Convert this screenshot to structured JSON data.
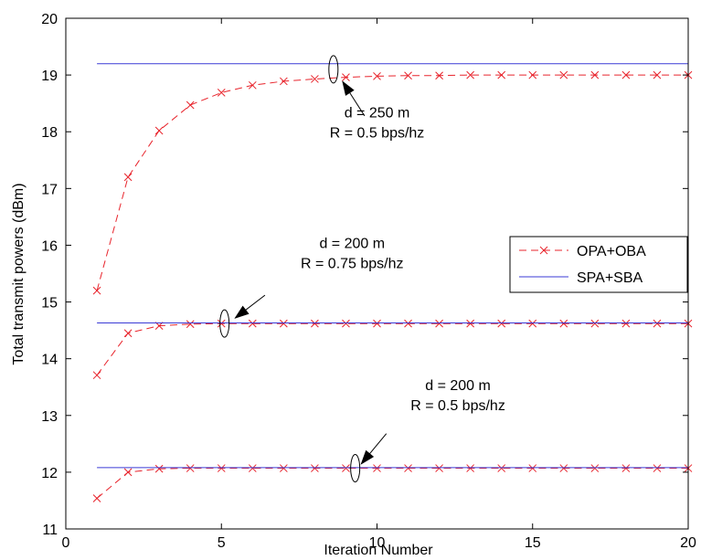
{
  "chart_data": {
    "type": "line",
    "xlabel": "Iteration Number",
    "ylabel": "Total transmit powers (dBm)",
    "xlim": [
      0,
      20
    ],
    "ylim": [
      11,
      20
    ],
    "xticks": [
      "0",
      "5",
      "10",
      "15",
      "20"
    ],
    "yticks": [
      "11",
      "12",
      "13",
      "14",
      "15",
      "16",
      "17",
      "18",
      "19",
      "20"
    ],
    "grid": false,
    "legend_position": "right",
    "legend": [
      {
        "label": "OPA+OBA",
        "style": "dashed-x",
        "color": "#e8242c"
      },
      {
        "label": "SPA+SBA",
        "style": "solid",
        "color": "#3a3ad6"
      }
    ],
    "series": [
      {
        "legend_index": 0,
        "x": [
          1,
          2,
          3,
          4,
          5,
          6,
          7,
          8,
          9,
          10,
          11,
          12,
          13,
          14,
          15,
          16,
          17,
          18,
          19,
          20
        ],
        "y": [
          15.2,
          17.2,
          18.02,
          18.47,
          18.69,
          18.82,
          18.89,
          18.93,
          18.96,
          18.98,
          18.99,
          18.99,
          19.0,
          19.0,
          19.0,
          19.0,
          19.0,
          19.0,
          19.0,
          19.0
        ]
      },
      {
        "legend_index": 1,
        "x": [
          1,
          20
        ],
        "y": [
          19.2,
          19.2
        ]
      },
      {
        "legend_index": 0,
        "x": [
          1,
          2,
          3,
          4,
          5,
          6,
          7,
          8,
          9,
          10,
          11,
          12,
          13,
          14,
          15,
          16,
          17,
          18,
          19,
          20
        ],
        "y": [
          13.71,
          14.45,
          14.58,
          14.61,
          14.62,
          14.62,
          14.62,
          14.62,
          14.62,
          14.62,
          14.62,
          14.62,
          14.62,
          14.62,
          14.62,
          14.62,
          14.62,
          14.62,
          14.62,
          14.62
        ]
      },
      {
        "legend_index": 1,
        "x": [
          1,
          20
        ],
        "y": [
          14.63,
          14.63
        ]
      },
      {
        "legend_index": 0,
        "x": [
          1,
          2,
          3,
          4,
          5,
          6,
          7,
          8,
          9,
          10,
          11,
          12,
          13,
          14,
          15,
          16,
          17,
          18,
          19,
          20
        ],
        "y": [
          11.54,
          12.0,
          12.06,
          12.07,
          12.07,
          12.07,
          12.07,
          12.07,
          12.07,
          12.07,
          12.07,
          12.07,
          12.07,
          12.07,
          12.07,
          12.07,
          12.07,
          12.07,
          12.07,
          12.07
        ]
      },
      {
        "legend_index": 1,
        "x": [
          1,
          20
        ],
        "y": [
          12.08,
          12.08
        ]
      }
    ],
    "annotations": [
      {
        "line1": "d = 250 m",
        "line2": "R = 0.5 bps/hz",
        "ellipse_x": 8.6,
        "ellipse_y": 19.1,
        "arrow_to_x": 8.9,
        "arrow_to_y": 18.88,
        "arrow_from_x": 9.6,
        "arrow_from_y": 18.28,
        "text_x": 10.0,
        "text_y": 18.25
      },
      {
        "line1": "d = 200 m",
        "line2": "R = 0.75 bps/hz",
        "ellipse_x": 5.1,
        "ellipse_y": 14.62,
        "arrow_to_x": 5.45,
        "arrow_to_y": 14.72,
        "arrow_from_x": 6.4,
        "arrow_from_y": 15.12,
        "text_x": 9.2,
        "text_y": 15.95
      },
      {
        "line1": "d = 200 m",
        "line2": "R = 0.5 bps/hz",
        "ellipse_x": 9.3,
        "ellipse_y": 12.07,
        "arrow_to_x": 9.5,
        "arrow_to_y": 12.15,
        "arrow_from_x": 10.3,
        "arrow_from_y": 12.68,
        "text_x": 12.6,
        "text_y": 13.45
      }
    ]
  }
}
